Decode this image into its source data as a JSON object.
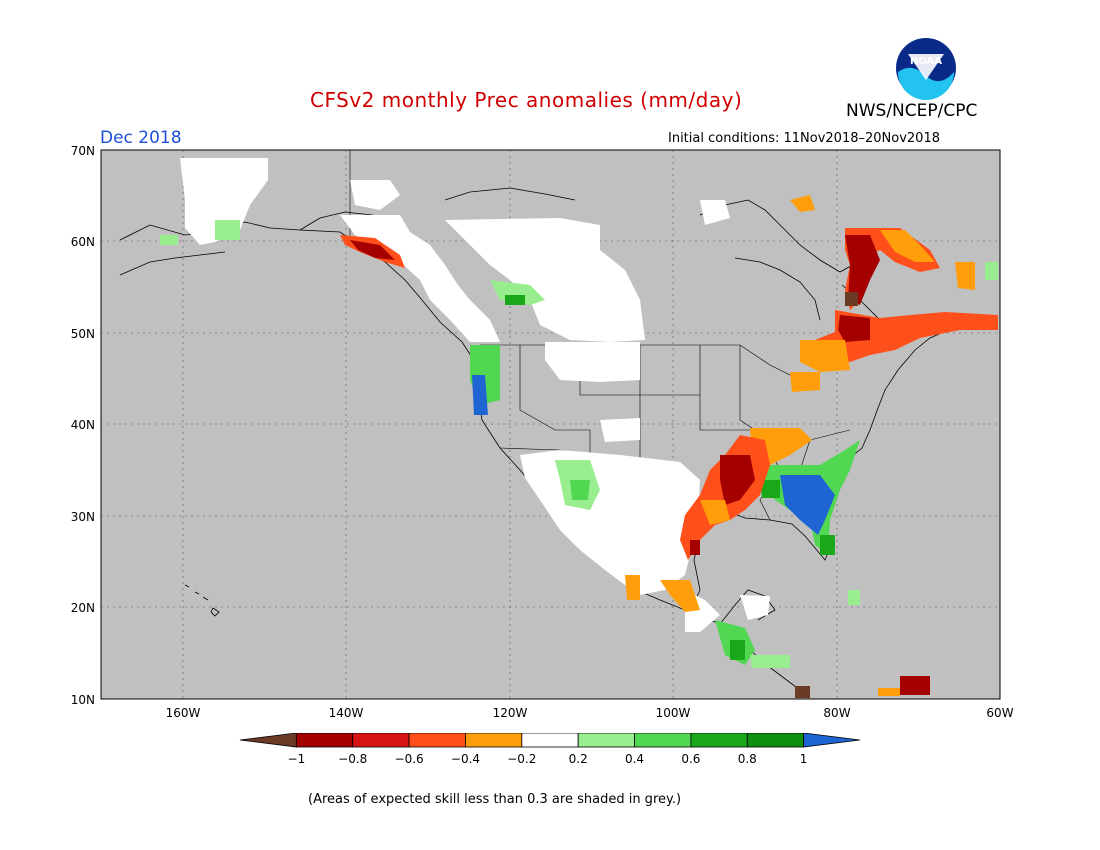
{
  "header": {
    "title": "CFSv2 monthly Prec anomalies (mm/day)",
    "agency": "NWS/NCEP/CPC",
    "period": "Dec 2018",
    "init_conditions": "Initial conditions: 11Nov2018–20Nov2018",
    "logo_text": "NOAA"
  },
  "map": {
    "lat_labels": [
      "70N",
      "60N",
      "50N",
      "40N",
      "30N",
      "20N",
      "10N"
    ],
    "lon_labels": [
      "160W",
      "140W",
      "120W",
      "100W",
      "80W",
      "60W"
    ],
    "extent": {
      "lon": [
        -170,
        -60
      ],
      "lat": [
        10,
        70
      ]
    },
    "background_color": "#c0c0c0",
    "grid": "dotted"
  },
  "colorbar": {
    "colors": [
      "#6b3a24",
      "#a50000",
      "#d81313",
      "#ff4f1a",
      "#ff9e0a",
      "#ffffff",
      "#98ee8e",
      "#52d752",
      "#1aa81a",
      "#0f8f0f",
      "#1e64d2"
    ],
    "tick_labels": [
      "−1",
      "−0.8",
      "−0.6",
      "−0.4",
      "−0.2",
      "0.2",
      "0.4",
      "0.6",
      "0.8",
      "1"
    ]
  },
  "footer": {
    "note": "(Areas of expected skill less than 0.3 are shaded in grey.)"
  }
}
